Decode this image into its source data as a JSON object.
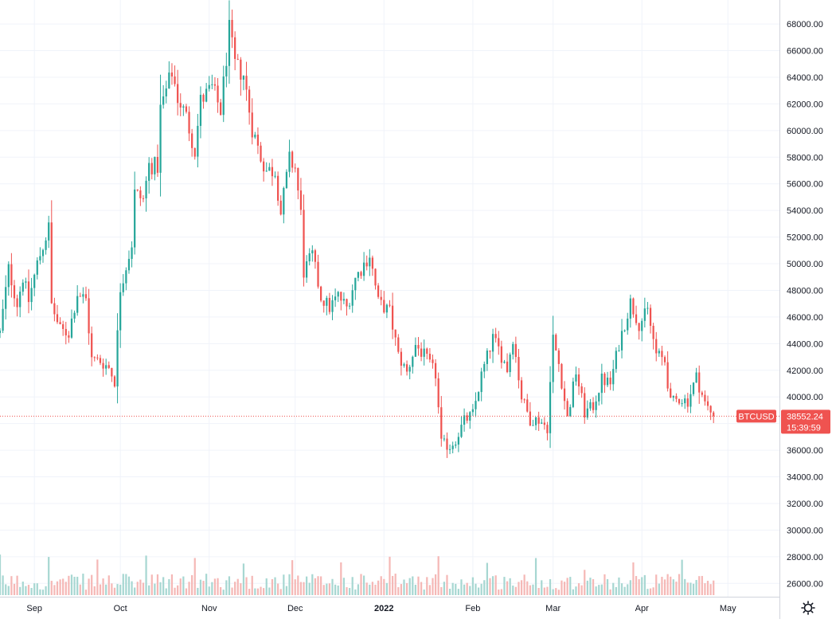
{
  "chart_data": {
    "type": "candlestick",
    "symbol_label": "BTCUSD",
    "last_price": 38552.24,
    "last_price_label": "38552.24",
    "countdown_label": "15:39:59",
    "y_axis": {
      "range": [
        25000,
        69800
      ],
      "ticks": [
        26000,
        28000,
        30000,
        32000,
        34000,
        36000,
        38000,
        40000,
        42000,
        44000,
        46000,
        48000,
        50000,
        52000,
        54000,
        56000,
        58000,
        60000,
        62000,
        64000,
        66000,
        68000
      ],
      "tick_labels": [
        "26000.00",
        "28000.00",
        "30000.00",
        "32000.00",
        "34000.00",
        "36000.00",
        "38000.00",
        "40000.00",
        "42000.00",
        "44000.00",
        "46000.00",
        "48000.00",
        "50000.00",
        "52000.00",
        "54000.00",
        "56000.00",
        "58000.00",
        "60000.00",
        "62000.00",
        "64000.00",
        "66000.00",
        "68000.00"
      ]
    },
    "x_axis": {
      "range": [
        "2021-08-20",
        "2022-05-19"
      ],
      "ticks": [
        {
          "date": "2021-09-01",
          "label": "Sep",
          "bold": false
        },
        {
          "date": "2021-10-01",
          "label": "Oct",
          "bold": false
        },
        {
          "date": "2021-11-01",
          "label": "Nov",
          "bold": false
        },
        {
          "date": "2021-12-01",
          "label": "Dec",
          "bold": false
        },
        {
          "date": "2022-01-01",
          "label": "2022",
          "bold": true
        },
        {
          "date": "2022-02-01",
          "label": "Feb",
          "bold": false
        },
        {
          "date": "2022-03-01",
          "label": "Mar",
          "bold": false
        },
        {
          "date": "2022-04-01",
          "label": "Apr",
          "bold": false
        },
        {
          "date": "2022-05-01",
          "label": "May",
          "bold": false
        }
      ]
    },
    "grid": true,
    "colors": {
      "up": "#26a69a",
      "down": "#ef5350",
      "up_volume": "#a7d7d2",
      "down_volume": "#f5b8b6",
      "grid": "#f0f3fa",
      "axis_text": "#131722",
      "badge": "#ef5350",
      "price_line": "#ef5350"
    },
    "price_waypoints": [
      [
        "2021-08-20",
        44800
      ],
      [
        "2021-08-23",
        49600
      ],
      [
        "2021-08-26",
        47000
      ],
      [
        "2021-08-28",
        49000
      ],
      [
        "2021-08-30",
        47200
      ],
      [
        "2021-09-02",
        50000
      ],
      [
        "2021-09-06",
        52700
      ],
      [
        "2021-09-07",
        46900
      ],
      [
        "2021-09-10",
        45000
      ],
      [
        "2021-09-13",
        44800
      ],
      [
        "2021-09-16",
        47800
      ],
      [
        "2021-09-19",
        47300
      ],
      [
        "2021-09-21",
        42800
      ],
      [
        "2021-09-24",
        42700
      ],
      [
        "2021-09-27",
        42200
      ],
      [
        "2021-09-29",
        41200
      ],
      [
        "2021-10-01",
        48200
      ],
      [
        "2021-10-05",
        51500
      ],
      [
        "2021-10-06",
        55300
      ],
      [
        "2021-10-09",
        54800
      ],
      [
        "2021-10-11",
        57400
      ],
      [
        "2021-10-14",
        57300
      ],
      [
        "2021-10-15",
        61600
      ],
      [
        "2021-10-19",
        64400
      ],
      [
        "2021-10-21",
        62500
      ],
      [
        "2021-10-24",
        61000
      ],
      [
        "2021-10-27",
        58500
      ],
      [
        "2021-10-29",
        62200
      ],
      [
        "2021-11-02",
        63200
      ],
      [
        "2021-11-05",
        61500
      ],
      [
        "2021-11-08",
        67500
      ],
      [
        "2021-11-10",
        64900
      ],
      [
        "2021-11-13",
        64200
      ],
      [
        "2021-11-16",
        60200
      ],
      [
        "2021-11-19",
        58000
      ],
      [
        "2021-11-21",
        57000
      ],
      [
        "2021-11-24",
        57000
      ],
      [
        "2021-11-26",
        53800
      ],
      [
        "2021-11-29",
        57800
      ],
      [
        "2021-12-01",
        57200
      ],
      [
        "2021-12-03",
        53700
      ],
      [
        "2021-12-04",
        49400
      ],
      [
        "2021-12-07",
        50600
      ],
      [
        "2021-12-10",
        47500
      ],
      [
        "2021-12-13",
        46700
      ],
      [
        "2021-12-16",
        47600
      ],
      [
        "2021-12-19",
        46700
      ],
      [
        "2021-12-22",
        48900
      ],
      [
        "2021-12-27",
        50700
      ],
      [
        "2021-12-30",
        47100
      ],
      [
        "2022-01-03",
        46400
      ],
      [
        "2022-01-06",
        43100
      ],
      [
        "2022-01-09",
        41800
      ],
      [
        "2022-01-12",
        43900
      ],
      [
        "2022-01-15",
        43100
      ],
      [
        "2022-01-19",
        41700
      ],
      [
        "2022-01-21",
        36500
      ],
      [
        "2022-01-24",
        36300
      ],
      [
        "2022-01-26",
        36800
      ],
      [
        "2022-01-29",
        38200
      ],
      [
        "2022-02-01",
        38700
      ],
      [
        "2022-02-04",
        41600
      ],
      [
        "2022-02-08",
        44400
      ],
      [
        "2022-02-10",
        43600
      ],
      [
        "2022-02-13",
        42100
      ],
      [
        "2022-02-15",
        44500
      ],
      [
        "2022-02-18",
        40000
      ],
      [
        "2022-02-21",
        38300
      ],
      [
        "2022-02-24",
        38300
      ],
      [
        "2022-02-27",
        37700
      ],
      [
        "2022-03-01",
        44400
      ],
      [
        "2022-03-03",
        42500
      ],
      [
        "2022-03-06",
        38400
      ],
      [
        "2022-03-09",
        41900
      ],
      [
        "2022-03-12",
        38800
      ],
      [
        "2022-03-15",
        39300
      ],
      [
        "2022-03-18",
        41300
      ],
      [
        "2022-03-21",
        41000
      ],
      [
        "2022-03-24",
        44000
      ],
      [
        "2022-03-28",
        47100
      ],
      [
        "2022-03-31",
        45500
      ],
      [
        "2022-04-03",
        46400
      ],
      [
        "2022-04-06",
        43200
      ],
      [
        "2022-04-09",
        42700
      ],
      [
        "2022-04-11",
        39500
      ],
      [
        "2022-04-14",
        39900
      ],
      [
        "2022-04-17",
        39700
      ],
      [
        "2022-04-20",
        41500
      ],
      [
        "2022-04-23",
        39500
      ],
      [
        "2022-04-26",
        38552
      ]
    ]
  }
}
